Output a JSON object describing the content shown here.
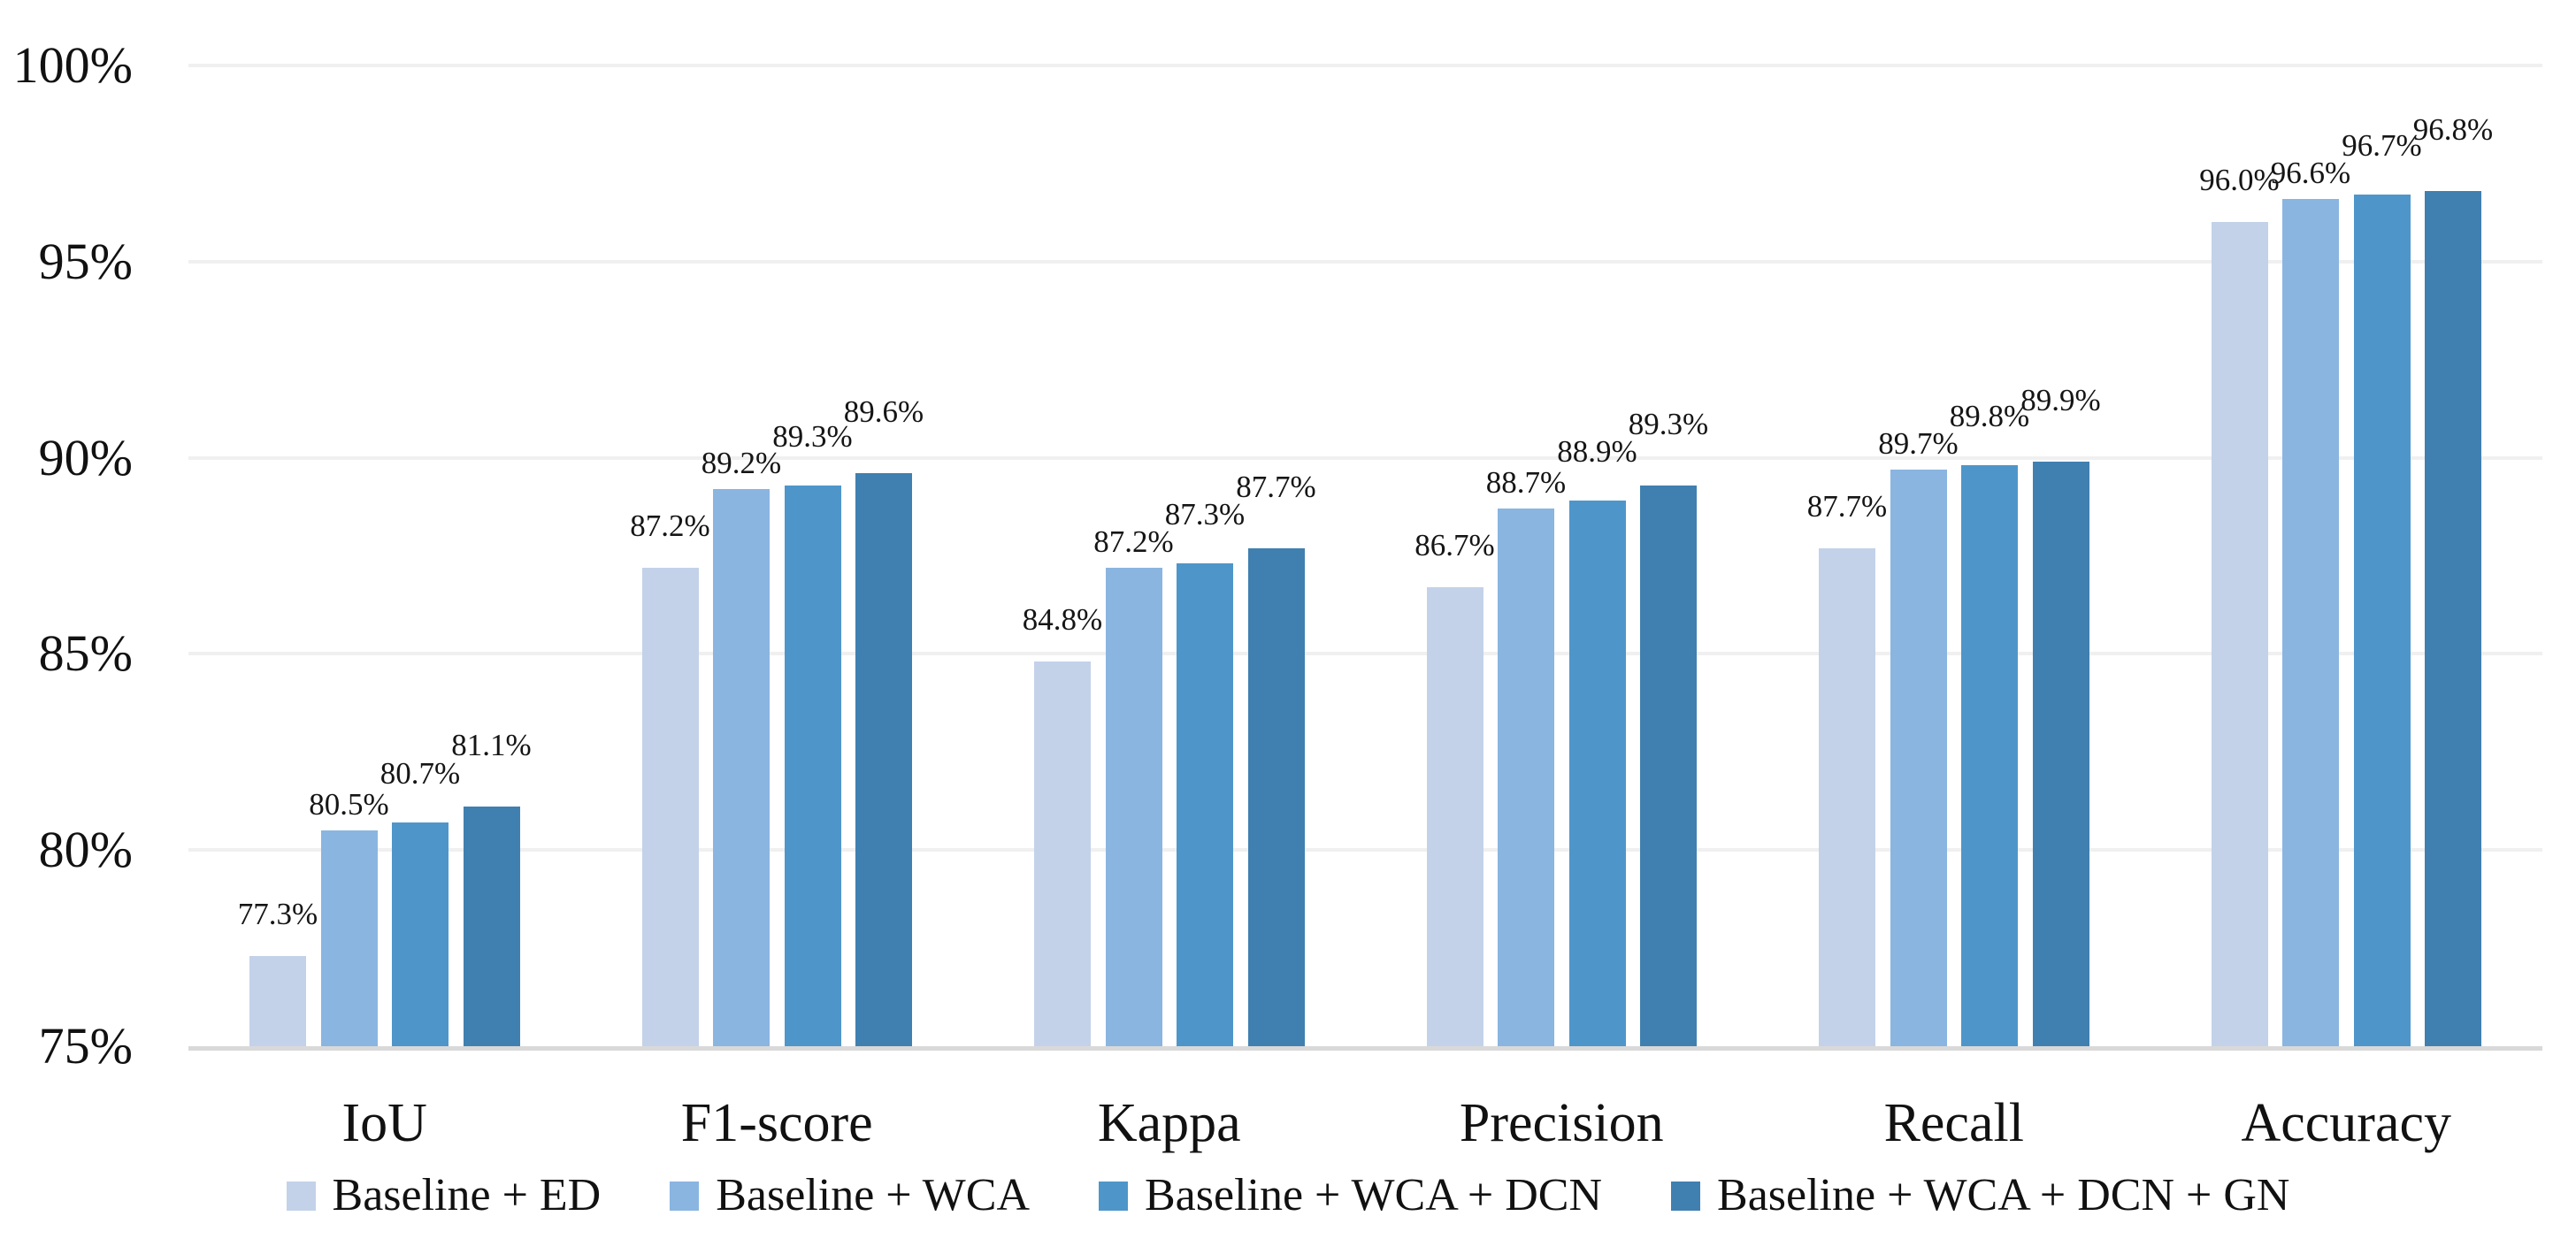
{
  "chart_data": {
    "type": "bar",
    "title": "",
    "xlabel": "",
    "ylabel": "",
    "categories": [
      "IoU",
      "F1-score",
      "Kappa",
      "Precision",
      "Recall",
      "Accuracy"
    ],
    "series": [
      {
        "name": "Baseline + ED",
        "color": "#c3d2e9",
        "values": [
          77.3,
          87.2,
          84.8,
          86.7,
          87.7,
          96.0
        ],
        "labels": [
          "77.3%",
          "87.2%",
          "84.8%",
          "86.7%",
          "87.7%",
          "96.0%"
        ]
      },
      {
        "name": "Baseline + WCA",
        "color": "#8ab5e0",
        "values": [
          80.5,
          89.2,
          87.2,
          88.7,
          89.7,
          96.6
        ],
        "labels": [
          "80.5%",
          "89.2%",
          "87.2%",
          "88.7%",
          "89.7%",
          "96.6%"
        ]
      },
      {
        "name": "Baseline + WCA + DCN",
        "color": "#4e96ca",
        "values": [
          80.7,
          89.3,
          87.3,
          88.9,
          89.8,
          96.7
        ],
        "labels": [
          "80.7%",
          "89.3%",
          "87.3%",
          "88.9%",
          "89.8%",
          "96.7%"
        ]
      },
      {
        "name": "Baseline + WCA + DCN + GN",
        "color": "#4080b0",
        "values": [
          81.1,
          89.6,
          87.7,
          89.3,
          89.9,
          96.8
        ],
        "labels": [
          "81.1%",
          "89.6%",
          "87.7%",
          "89.3%",
          "89.9%",
          "96.8%"
        ]
      }
    ],
    "y_axis": {
      "min": 75,
      "max": 100,
      "step": 5,
      "ticks": [
        {
          "value": 75,
          "label": "75%"
        },
        {
          "value": 80,
          "label": "80%"
        },
        {
          "value": 85,
          "label": "85%"
        },
        {
          "value": 90,
          "label": "90%"
        },
        {
          "value": 95,
          "label": "95%"
        },
        {
          "value": 100,
          "label": "100%"
        }
      ]
    },
    "grid": true,
    "legend_position": "bottom",
    "colors": {
      "background": "#ffffff",
      "gridline": "#f0f0f0",
      "axis_line": "#d9d9d9",
      "text": "#111111"
    }
  }
}
